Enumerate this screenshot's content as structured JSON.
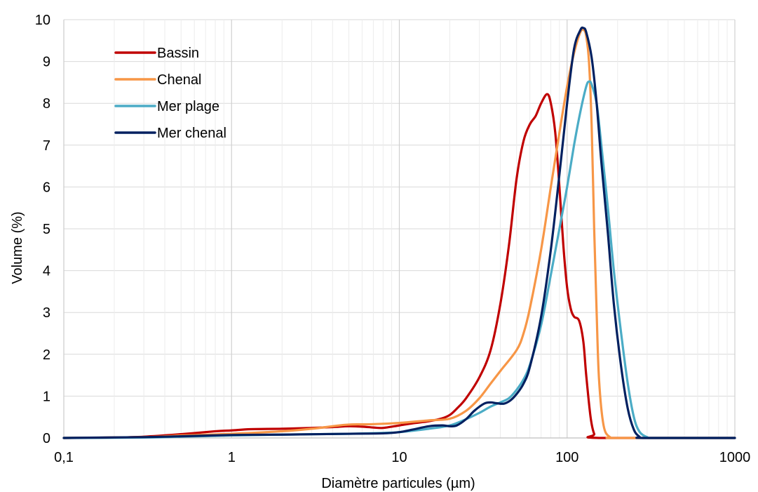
{
  "chart_data": {
    "type": "line",
    "xlabel": "Diamètre particules (µm)",
    "ylabel": "Volume (%)",
    "xscale": "log",
    "xlim": [
      0.1,
      1000
    ],
    "ylim": [
      0,
      10
    ],
    "x_tick_labels": [
      "0,1",
      "1",
      "10",
      "100",
      "1000"
    ],
    "y_tick_labels": [
      "0",
      "1",
      "2",
      "3",
      "4",
      "5",
      "6",
      "7",
      "8",
      "9",
      "10"
    ],
    "grid": "on (major and minor vertical, major horizontal)",
    "legend_position": "top-left",
    "series": [
      {
        "name": "Bassin",
        "color": "#c00000",
        "points": [
          [
            0.1,
            0
          ],
          [
            0.2,
            0.01
          ],
          [
            0.3,
            0.03
          ],
          [
            0.5,
            0.09
          ],
          [
            0.8,
            0.16
          ],
          [
            1,
            0.18
          ],
          [
            1.3,
            0.21
          ],
          [
            2,
            0.22
          ],
          [
            3,
            0.24
          ],
          [
            4,
            0.26
          ],
          [
            5,
            0.28
          ],
          [
            6,
            0.27
          ],
          [
            7,
            0.25
          ],
          [
            8,
            0.24
          ],
          [
            10,
            0.3
          ],
          [
            12,
            0.35
          ],
          [
            15,
            0.4
          ],
          [
            18,
            0.47
          ],
          [
            20,
            0.55
          ],
          [
            22,
            0.7
          ],
          [
            25,
            0.95
          ],
          [
            30,
            1.45
          ],
          [
            35,
            2.1
          ],
          [
            40,
            3.2
          ],
          [
            45,
            4.6
          ],
          [
            50,
            6.2
          ],
          [
            55,
            7.1
          ],
          [
            60,
            7.5
          ],
          [
            65,
            7.7
          ],
          [
            70,
            8.0
          ],
          [
            76,
            8.22
          ],
          [
            80,
            8.0
          ],
          [
            85,
            7.3
          ],
          [
            90,
            6.0
          ],
          [
            95,
            4.6
          ],
          [
            100,
            3.6
          ],
          [
            105,
            3.1
          ],
          [
            110,
            2.9
          ],
          [
            118,
            2.8
          ],
          [
            125,
            2.3
          ],
          [
            130,
            1.5
          ],
          [
            138,
            0.5
          ],
          [
            145,
            0.1
          ],
          [
            155,
            0
          ],
          [
            1000,
            0
          ]
        ]
      },
      {
        "name": "Chenal",
        "color": "#f79646",
        "points": [
          [
            0.1,
            0
          ],
          [
            0.3,
            0.02
          ],
          [
            0.5,
            0.06
          ],
          [
            1,
            0.1
          ],
          [
            2,
            0.16
          ],
          [
            3,
            0.22
          ],
          [
            4,
            0.28
          ],
          [
            5,
            0.32
          ],
          [
            7,
            0.33
          ],
          [
            10,
            0.36
          ],
          [
            15,
            0.42
          ],
          [
            20,
            0.46
          ],
          [
            25,
            0.65
          ],
          [
            30,
            0.95
          ],
          [
            35,
            1.3
          ],
          [
            40,
            1.6
          ],
          [
            50,
            2.1
          ],
          [
            55,
            2.5
          ],
          [
            60,
            3.1
          ],
          [
            70,
            4.5
          ],
          [
            80,
            6.0
          ],
          [
            90,
            7.3
          ],
          [
            100,
            8.4
          ],
          [
            110,
            9.2
          ],
          [
            120,
            9.7
          ],
          [
            126,
            9.75
          ],
          [
            130,
            9.6
          ],
          [
            135,
            9.0
          ],
          [
            140,
            7.5
          ],
          [
            145,
            5.0
          ],
          [
            150,
            3.0
          ],
          [
            155,
            1.4
          ],
          [
            165,
            0.3
          ],
          [
            180,
            0.02
          ],
          [
            200,
            0
          ],
          [
            1000,
            0
          ]
        ]
      },
      {
        "name": "Mer plage",
        "color": "#4bacc6",
        "points": [
          [
            0.1,
            0
          ],
          [
            0.3,
            0.01
          ],
          [
            0.5,
            0.03
          ],
          [
            1,
            0.06
          ],
          [
            2,
            0.08
          ],
          [
            5,
            0.1
          ],
          [
            8,
            0.12
          ],
          [
            10,
            0.14
          ],
          [
            15,
            0.22
          ],
          [
            20,
            0.3
          ],
          [
            25,
            0.45
          ],
          [
            30,
            0.6
          ],
          [
            35,
            0.75
          ],
          [
            40,
            0.85
          ],
          [
            45,
            0.95
          ],
          [
            50,
            1.15
          ],
          [
            55,
            1.4
          ],
          [
            60,
            1.75
          ],
          [
            70,
            2.7
          ],
          [
            80,
            3.9
          ],
          [
            90,
            5.0
          ],
          [
            100,
            6.0
          ],
          [
            110,
            7.0
          ],
          [
            120,
            7.8
          ],
          [
            130,
            8.4
          ],
          [
            135,
            8.52
          ],
          [
            140,
            8.45
          ],
          [
            150,
            8.0
          ],
          [
            160,
            7.0
          ],
          [
            175,
            5.5
          ],
          [
            190,
            4.0
          ],
          [
            210,
            2.5
          ],
          [
            230,
            1.3
          ],
          [
            250,
            0.5
          ],
          [
            270,
            0.15
          ],
          [
            300,
            0.02
          ],
          [
            330,
            0
          ],
          [
            1000,
            0
          ]
        ]
      },
      {
        "name": "Mer chenal",
        "color": "#002060",
        "points": [
          [
            0.1,
            0
          ],
          [
            0.3,
            0.02
          ],
          [
            0.5,
            0.04
          ],
          [
            1,
            0.07
          ],
          [
            2,
            0.08
          ],
          [
            5,
            0.1
          ],
          [
            8,
            0.11
          ],
          [
            10,
            0.14
          ],
          [
            12,
            0.2
          ],
          [
            15,
            0.28
          ],
          [
            18,
            0.3
          ],
          [
            20,
            0.28
          ],
          [
            22,
            0.3
          ],
          [
            25,
            0.45
          ],
          [
            28,
            0.65
          ],
          [
            32,
            0.82
          ],
          [
            35,
            0.85
          ],
          [
            38,
            0.83
          ],
          [
            42,
            0.82
          ],
          [
            46,
            0.9
          ],
          [
            50,
            1.05
          ],
          [
            55,
            1.3
          ],
          [
            60,
            1.7
          ],
          [
            70,
            2.9
          ],
          [
            80,
            4.5
          ],
          [
            90,
            6.3
          ],
          [
            100,
            8.0
          ],
          [
            110,
            9.3
          ],
          [
            120,
            9.75
          ],
          [
            125,
            9.8
          ],
          [
            130,
            9.7
          ],
          [
            140,
            9.1
          ],
          [
            150,
            8.0
          ],
          [
            160,
            6.6
          ],
          [
            175,
            4.9
          ],
          [
            190,
            3.2
          ],
          [
            210,
            1.7
          ],
          [
            230,
            0.7
          ],
          [
            250,
            0.2
          ],
          [
            270,
            0.03
          ],
          [
            290,
            0
          ],
          [
            1000,
            0
          ]
        ]
      }
    ]
  }
}
